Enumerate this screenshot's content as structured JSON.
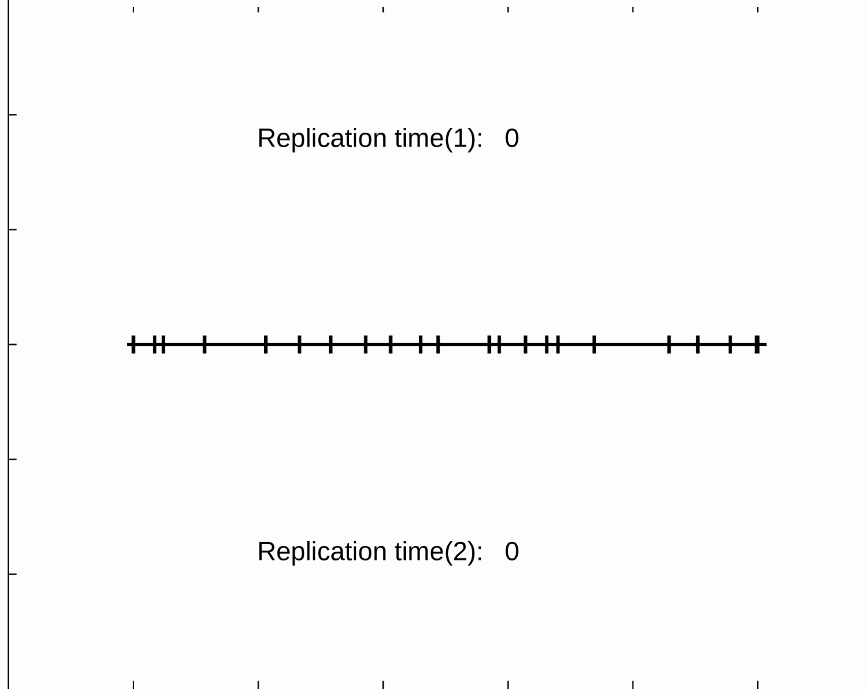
{
  "chart_data": {
    "type": "scatter",
    "title": "",
    "xlabel": "",
    "ylabel": "",
    "xlim": [
      0,
      5
    ],
    "ylim": [
      -3,
      3
    ],
    "x_ticks": [
      0,
      1,
      2,
      3,
      4,
      5
    ],
    "y_ticks": [
      -2,
      -1,
      0,
      1,
      2
    ],
    "grid": false,
    "baseline": {
      "y": 0,
      "x_start": -0.05,
      "x_end": 5.07
    },
    "series": [
      {
        "values_x": [
          0,
          0.17,
          0.24,
          0.57,
          1.06,
          1.33,
          1.58,
          1.86,
          2.06,
          2.3,
          2.44,
          2.85,
          2.93,
          3.14,
          3.31,
          3.4,
          3.69,
          4.29,
          4.52,
          4.78,
          4.99,
          5.0
        ],
        "values_y": [
          0,
          0,
          0,
          0,
          0,
          0,
          0,
          0,
          0,
          0,
          0,
          0,
          0,
          0,
          0,
          0,
          0,
          0,
          0,
          0,
          0,
          0
        ]
      }
    ],
    "annotations": [
      {
        "label": "Replication time(1):",
        "value": "0",
        "y": 1.8
      },
      {
        "label": "Replication time(2):",
        "value": "0",
        "y": -1.8
      }
    ]
  }
}
